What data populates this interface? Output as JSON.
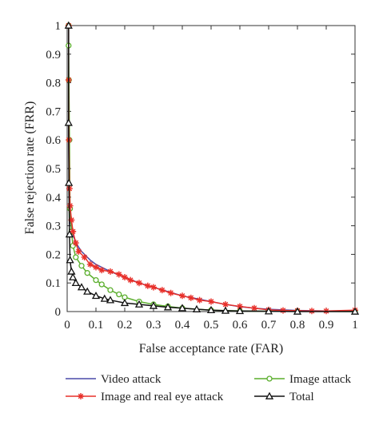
{
  "chart_data": {
    "type": "line",
    "xlabel": "False acceptance rate (FAR)",
    "ylabel": "False rejection rate (FRR)",
    "xlim": [
      0,
      1
    ],
    "ylim": [
      0,
      1
    ],
    "x_ticks": [
      "0",
      "0.1",
      "0.2",
      "0.3",
      "0.4",
      "0.5",
      "0.6",
      "0.7",
      "0.8",
      "0.9",
      "1"
    ],
    "y_ticks": [
      "0",
      "0.1",
      "0.2",
      "0.3",
      "0.4",
      "0.5",
      "0.6",
      "0.7",
      "0.8",
      "0.9",
      "1"
    ],
    "grid": false,
    "legend_position": "bottom",
    "series": [
      {
        "name": "Video attack",
        "color": "#4a4aa8",
        "marker": "none",
        "x": [
          0.005,
          0.005,
          0.008,
          0.01,
          0.015,
          0.02,
          0.03,
          0.05,
          0.08,
          0.1,
          0.15,
          0.2,
          0.25,
          0.3,
          0.35,
          0.4,
          0.45,
          0.5,
          0.55,
          0.6,
          0.65,
          0.7,
          0.8,
          0.9,
          1.0
        ],
        "y": [
          1.0,
          0.6,
          0.4,
          0.32,
          0.29,
          0.27,
          0.24,
          0.21,
          0.18,
          0.165,
          0.14,
          0.12,
          0.1,
          0.085,
          0.07,
          0.055,
          0.045,
          0.035,
          0.025,
          0.017,
          0.012,
          0.008,
          0.004,
          0.002,
          0.001
        ]
      },
      {
        "name": "Image attack",
        "color": "#5aae2c",
        "marker": "circle",
        "x": [
          0.005,
          0.005,
          0.006,
          0.008,
          0.01,
          0.015,
          0.02,
          0.03,
          0.05,
          0.07,
          0.1,
          0.12,
          0.15,
          0.18,
          0.2,
          0.25,
          0.3,
          0.35,
          0.4,
          0.5,
          0.6,
          0.7,
          0.8,
          1.0
        ],
        "y": [
          1.0,
          0.93,
          0.81,
          0.6,
          0.36,
          0.28,
          0.23,
          0.19,
          0.16,
          0.135,
          0.11,
          0.095,
          0.075,
          0.06,
          0.05,
          0.035,
          0.025,
          0.018,
          0.012,
          0.005,
          0.002,
          0.001,
          0.001,
          0.0
        ]
      },
      {
        "name": "Image and real eye attack",
        "color": "#e8302a",
        "marker": "asterisk",
        "x": [
          0.005,
          0.005,
          0.006,
          0.008,
          0.01,
          0.015,
          0.02,
          0.03,
          0.04,
          0.06,
          0.08,
          0.1,
          0.12,
          0.15,
          0.18,
          0.2,
          0.22,
          0.25,
          0.28,
          0.3,
          0.33,
          0.36,
          0.4,
          0.43,
          0.46,
          0.5,
          0.55,
          0.6,
          0.65,
          0.7,
          0.75,
          0.8,
          0.85,
          0.9,
          1.0
        ],
        "y": [
          1.0,
          0.81,
          0.6,
          0.43,
          0.37,
          0.32,
          0.28,
          0.24,
          0.21,
          0.19,
          0.165,
          0.155,
          0.145,
          0.14,
          0.13,
          0.12,
          0.11,
          0.1,
          0.09,
          0.085,
          0.075,
          0.065,
          0.055,
          0.048,
          0.04,
          0.035,
          0.025,
          0.018,
          0.012,
          0.006,
          0.004,
          0.003,
          0.002,
          0.002,
          0.005
        ]
      },
      {
        "name": "Total",
        "color": "#111111",
        "marker": "triangle",
        "x": [
          0.005,
          0.005,
          0.006,
          0.008,
          0.01,
          0.015,
          0.02,
          0.03,
          0.05,
          0.07,
          0.1,
          0.13,
          0.15,
          0.2,
          0.25,
          0.3,
          0.35,
          0.4,
          0.45,
          0.5,
          0.55,
          0.6,
          0.7,
          0.8,
          1.0
        ],
        "y": [
          1.0,
          0.66,
          0.45,
          0.27,
          0.18,
          0.14,
          0.12,
          0.1,
          0.085,
          0.07,
          0.055,
          0.045,
          0.04,
          0.03,
          0.025,
          0.02,
          0.015,
          0.012,
          0.008,
          0.005,
          0.003,
          0.002,
          0.001,
          0.0,
          0.0
        ]
      }
    ]
  }
}
